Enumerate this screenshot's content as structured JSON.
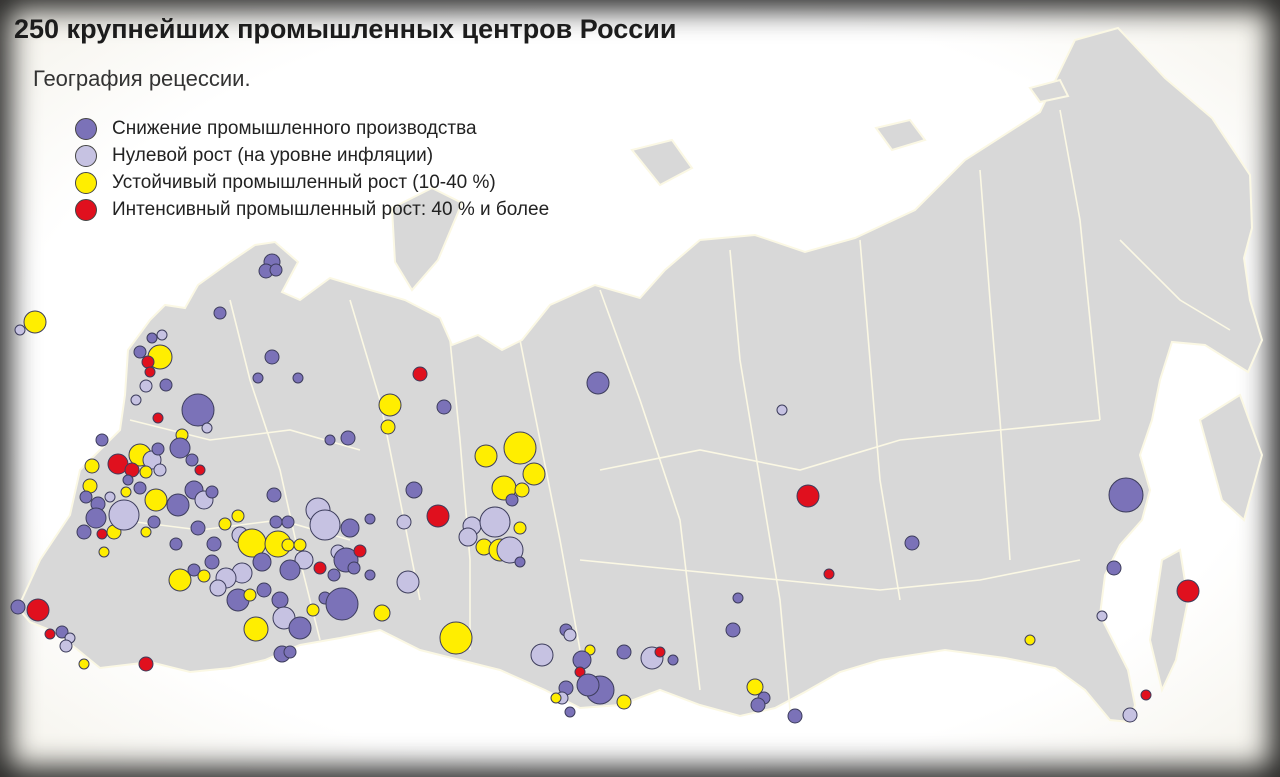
{
  "title": "250 крупнейших промышленных центров России",
  "subtitle": "География рецессии.",
  "colors": {
    "background": "#ffffff",
    "land": "#d8d8d8",
    "border": "#fbf8e4",
    "marker_outline": "#3d3d5c"
  },
  "legend": [
    {
      "key": "decline",
      "label": "Снижение промышленного производства",
      "color": "#7b72b8"
    },
    {
      "key": "zero",
      "label": "Нулевой рост (на уровне инфляции)",
      "color": "#c6c2e2"
    },
    {
      "key": "stable",
      "label": "Устойчивый промышленный рост (10-40 %)",
      "color": "#ffee00"
    },
    {
      "key": "intensive",
      "label": "Интенсивный промышленный рост: 40 % и более",
      "color": "#e0101e"
    }
  ]
}
